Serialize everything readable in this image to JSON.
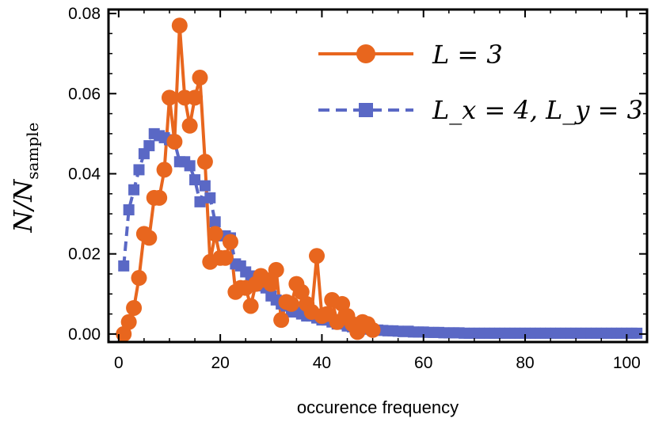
{
  "chart_data": {
    "type": "line",
    "xlabel": "occurence frequency",
    "ylabel": "N/N",
    "ylabel_sub": "sample",
    "xlim": [
      -2,
      104
    ],
    "ylim": [
      -0.002,
      0.081
    ],
    "x_ticks": [
      0,
      20,
      40,
      60,
      80,
      100
    ],
    "y_ticks": [
      0.0,
      0.02,
      0.04,
      0.06,
      0.08
    ],
    "x_tick_labels": [
      "0",
      "20",
      "40",
      "60",
      "80",
      "100"
    ],
    "y_tick_labels": [
      "0.00",
      "0.02",
      "0.04",
      "0.06",
      "0.08"
    ],
    "grid": false,
    "legend_position": "top-right",
    "series": [
      {
        "name_main": "L = 3",
        "color": "#e8661e",
        "marker": "circle",
        "line": "solid",
        "x": [
          1,
          2,
          3,
          4,
          5,
          6,
          7,
          8,
          9,
          10,
          11,
          12,
          13,
          14,
          15,
          16,
          17,
          18,
          19,
          20,
          21,
          22,
          23,
          24,
          25,
          26,
          27,
          28,
          29,
          30,
          31,
          32,
          33,
          34,
          35,
          36,
          37,
          38,
          39,
          40,
          41,
          42,
          43,
          44,
          45,
          46,
          47,
          48,
          49,
          50
        ],
        "values": [
          0.0,
          0.003,
          0.0065,
          0.014,
          0.025,
          0.024,
          0.034,
          0.034,
          0.041,
          0.059,
          0.048,
          0.077,
          0.059,
          0.052,
          0.059,
          0.064,
          0.043,
          0.018,
          0.025,
          0.019,
          0.019,
          0.023,
          0.0105,
          0.0115,
          0.0115,
          0.007,
          0.0125,
          0.0145,
          0.0135,
          0.0125,
          0.016,
          0.0035,
          0.008,
          0.0075,
          0.0125,
          0.0105,
          0.0075,
          0.0055,
          0.0195,
          0.0045,
          0.005,
          0.0085,
          0.003,
          0.0075,
          0.0045,
          0.0025,
          0.0005,
          0.003,
          0.0025,
          0.001
        ]
      },
      {
        "name_main": "L_x = 4, L_y = 3",
        "color": "#5a68c5",
        "marker": "square",
        "line": "dashed",
        "x": [
          1,
          2,
          3,
          4,
          5,
          6,
          7,
          8,
          9,
          10,
          11,
          12,
          13,
          14,
          15,
          16,
          17,
          18,
          19,
          20,
          21,
          22,
          23,
          24,
          25,
          26,
          27,
          28,
          29,
          30,
          31,
          32,
          33,
          34,
          35,
          36,
          37,
          38,
          39,
          40,
          41,
          42,
          43,
          44,
          45,
          46,
          47,
          48,
          49,
          50,
          51,
          52,
          53,
          54,
          55,
          56,
          57,
          58,
          59,
          60,
          61,
          62,
          63,
          64,
          65,
          66,
          67,
          68,
          69,
          70,
          71,
          72,
          73,
          74,
          75,
          76,
          77,
          78,
          79,
          80,
          81,
          82,
          83,
          84,
          85,
          86,
          87,
          88,
          89,
          90,
          91,
          92,
          93,
          94,
          95,
          96,
          97,
          98,
          99,
          100,
          101,
          102
        ],
        "values": [
          0.017,
          0.031,
          0.036,
          0.041,
          0.045,
          0.047,
          0.05,
          0.0495,
          0.049,
          0.0485,
          0.048,
          0.043,
          0.043,
          0.042,
          0.0385,
          0.033,
          0.037,
          0.034,
          0.028,
          0.0245,
          0.0245,
          0.024,
          0.0175,
          0.017,
          0.0155,
          0.0145,
          0.012,
          0.0125,
          0.0115,
          0.0095,
          0.0085,
          0.0075,
          0.007,
          0.0055,
          0.0055,
          0.005,
          0.0045,
          0.0045,
          0.004,
          0.0035,
          0.0035,
          0.003,
          0.0025,
          0.0025,
          0.002,
          0.0018,
          0.0016,
          0.0014,
          0.0012,
          0.001,
          0.001,
          0.0009,
          0.0008,
          0.0008,
          0.0007,
          0.0006,
          0.0007,
          0.0005,
          0.0005,
          0.0005,
          0.0004,
          0.0004,
          0.0004,
          0.0003,
          0.0003,
          0.0003,
          0.0003,
          0.0002,
          0.0002,
          0.0002,
          0.0002,
          0.0002,
          0.0002,
          0.0002,
          0.0002,
          0.0002,
          0.0002,
          0.0002,
          0.0002,
          0.0002,
          0.0002,
          0.0002,
          0.0002,
          0.0002,
          0.0002,
          0.0002,
          0.0002,
          0.0002,
          0.0002,
          0.0002,
          0.0002,
          0.0002,
          0.0002,
          0.0002,
          0.0002,
          0.0002,
          0.0002,
          0.0002,
          0.0002,
          0.0002,
          0.0002,
          0.0002
        ]
      }
    ]
  }
}
